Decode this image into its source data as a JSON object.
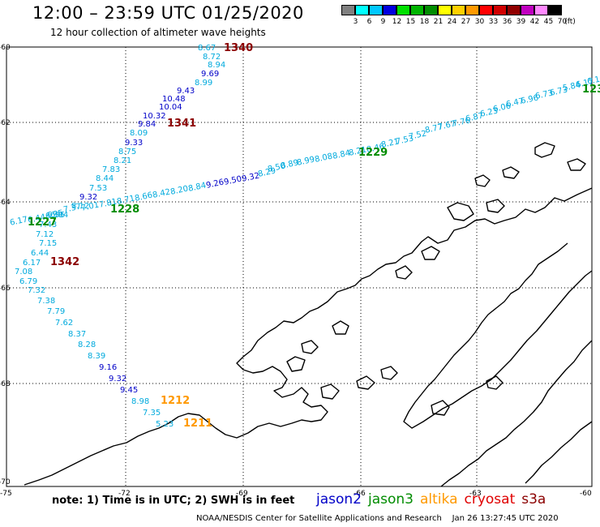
{
  "title": "12:00 – 23:59 UTC 01/25/2020",
  "subtitle": "12 hour collection of altimeter wave heights",
  "colorbar": {
    "unit": "(ft)",
    "swatches": [
      {
        "color": "#808080",
        "label": "3"
      },
      {
        "color": "#00ffff",
        "label": "6"
      },
      {
        "color": "#00c8ff",
        "label": "9"
      },
      {
        "color": "#0000e0",
        "label": "12"
      },
      {
        "color": "#00e000",
        "label": "15"
      },
      {
        "color": "#00b400",
        "label": "18"
      },
      {
        "color": "#008c00",
        "label": "21"
      },
      {
        "color": "#ffff00",
        "label": "24"
      },
      {
        "color": "#ffd000",
        "label": "27"
      },
      {
        "color": "#ff9900",
        "label": "30"
      },
      {
        "color": "#ff0000",
        "label": "33"
      },
      {
        "color": "#d00000",
        "label": "36"
      },
      {
        "color": "#900000",
        "label": "39"
      },
      {
        "color": "#c000c0",
        "label": "42"
      },
      {
        "color": "#ff88ff",
        "label": "45"
      },
      {
        "color": "#000000",
        "label": "70"
      }
    ]
  },
  "axes": {
    "lat_labels": [
      "-60",
      "-62",
      "-64",
      "-66",
      "-68",
      "-70"
    ],
    "lon_labels": [
      "-75",
      "-72",
      "-69",
      "-66",
      "-63",
      "-60"
    ]
  },
  "satellite_colors": {
    "jason2": "#0000c8",
    "jason3": "#008c00",
    "altika": "#ff9900",
    "cryosat": "#e00000",
    "s3a": "#8b0000",
    "low": "#00aadd"
  },
  "tracks": [
    {
      "id": "track-1340",
      "pass": {
        "label": "1340",
        "sat": "s3a"
      },
      "points": [
        {
          "v": "8.67",
          "c": "low"
        },
        {
          "v": "8.72",
          "c": "low"
        },
        {
          "v": "8.94",
          "c": "low"
        },
        {
          "v": "9.69",
          "c": "jason2"
        },
        {
          "v": "8.99",
          "c": "low"
        },
        {
          "v": "9.43",
          "c": "jason2"
        },
        {
          "v": "10.48",
          "c": "jason2"
        },
        {
          "v": "10.04",
          "c": "jason2"
        },
        {
          "v": "10.32",
          "c": "jason2"
        },
        {
          "v": "9.84",
          "c": "jason2"
        },
        {
          "v": "8.09",
          "c": "low"
        },
        {
          "v": "9.33",
          "c": "jason2"
        },
        {
          "v": "8.75",
          "c": "low"
        },
        {
          "v": "8.21",
          "c": "low"
        },
        {
          "v": "7.83",
          "c": "low"
        },
        {
          "v": "8.44",
          "c": "low"
        },
        {
          "v": "7.53",
          "c": "low"
        },
        {
          "v": "9.32",
          "c": "jason2"
        },
        {
          "v": "8.12",
          "c": "low"
        },
        {
          "v": "6.95",
          "c": "low"
        },
        {
          "v": "6.84",
          "c": "low"
        },
        {
          "v": "7.43",
          "c": "low"
        },
        {
          "v": "7.12",
          "c": "low"
        },
        {
          "v": "7.15",
          "c": "low"
        },
        {
          "v": "6.44",
          "c": "low"
        },
        {
          "v": "6.17",
          "c": "low"
        },
        {
          "v": "7.08",
          "c": "low"
        },
        {
          "v": "6.79",
          "c": "low"
        },
        {
          "v": "7.32",
          "c": "low"
        },
        {
          "v": "7.38",
          "c": "low"
        },
        {
          "v": "7.79",
          "c": "low"
        },
        {
          "v": "7.62",
          "c": "low"
        },
        {
          "v": "8.37",
          "c": "low"
        },
        {
          "v": "8.28",
          "c": "low"
        },
        {
          "v": "8.39",
          "c": "low"
        },
        {
          "v": "9.16",
          "c": "jason2"
        },
        {
          "v": "9.32",
          "c": "jason2"
        },
        {
          "v": "9.45",
          "c": "jason2"
        },
        {
          "v": "8.98",
          "c": "low"
        },
        {
          "v": "7.35",
          "c": "low"
        },
        {
          "v": "5.23",
          "c": "low"
        }
      ]
    },
    {
      "id": "track-1228",
      "pass": {
        "label": "1228",
        "sat": "jason3"
      },
      "points": [
        {
          "v": "6.17",
          "c": "low"
        },
        {
          "v": "6.44",
          "c": "low"
        },
        {
          "v": "6.95",
          "c": "low"
        },
        {
          "v": "7.37",
          "c": "low"
        },
        {
          "v": "7.01",
          "c": "low"
        },
        {
          "v": "7.81",
          "c": "low"
        },
        {
          "v": "8.71",
          "c": "low"
        },
        {
          "v": "8.66",
          "c": "low"
        },
        {
          "v": "8.42",
          "c": "low"
        },
        {
          "v": "8.20",
          "c": "low"
        },
        {
          "v": "8.84",
          "c": "low"
        },
        {
          "v": "9.26",
          "c": "jason2"
        },
        {
          "v": "9.50",
          "c": "jason2"
        },
        {
          "v": "9.32",
          "c": "jason2"
        },
        {
          "v": "8.29",
          "c": "low"
        },
        {
          "v": "8.50",
          "c": "low"
        },
        {
          "v": "8.89",
          "c": "low"
        },
        {
          "v": "8.99",
          "c": "low"
        },
        {
          "v": "8.08",
          "c": "low"
        },
        {
          "v": "8.84",
          "c": "low"
        },
        {
          "v": "8.21",
          "c": "low"
        },
        {
          "v": "8.46",
          "c": "low"
        },
        {
          "v": "8.21",
          "c": "low"
        },
        {
          "v": "7.53",
          "c": "low"
        },
        {
          "v": "7.52",
          "c": "low"
        },
        {
          "v": "8.77",
          "c": "low"
        },
        {
          "v": "7.67",
          "c": "low"
        },
        {
          "v": "7.76",
          "c": "low"
        },
        {
          "v": "6.87",
          "c": "low"
        },
        {
          "v": "6.23",
          "c": "low"
        },
        {
          "v": "6.06",
          "c": "low"
        },
        {
          "v": "6.47",
          "c": "low"
        },
        {
          "v": "6.96",
          "c": "low"
        },
        {
          "v": "6.73",
          "c": "low"
        },
        {
          "v": "6.73",
          "c": "low"
        },
        {
          "v": "5.84",
          "c": "low"
        },
        {
          "v": "6.17",
          "c": "low"
        },
        {
          "v": "6.1",
          "c": "low"
        }
      ]
    }
  ],
  "pass_labels": [
    {
      "label": "1340",
      "sat": "s3a"
    },
    {
      "label": "1341",
      "sat": "s3a"
    },
    {
      "label": "1342",
      "sat": "s3a"
    },
    {
      "label": "1227",
      "sat": "jason3"
    },
    {
      "label": "1228",
      "sat": "jason3"
    },
    {
      "label": "1229",
      "sat": "jason3"
    },
    {
      "label": "123",
      "sat": "jason3"
    },
    {
      "label": "1212",
      "sat": "altika"
    },
    {
      "label": "1211",
      "sat": "altika"
    }
  ],
  "note": "note:  1) Time is in UTC;  2) SWH is in feet",
  "legend": [
    {
      "name": "jason2",
      "color": "#0000c8"
    },
    {
      "name": "jason3",
      "color": "#008c00"
    },
    {
      "name": "altika",
      "color": "#ff9900"
    },
    {
      "name": "cryosat",
      "color": "#e00000"
    },
    {
      "name": "s3a",
      "color": "#8b0000"
    }
  ],
  "credit": "NOAA/NESDIS Center for Satellite Applications and Research    Jan 26 13:27:45 UTC 2020"
}
